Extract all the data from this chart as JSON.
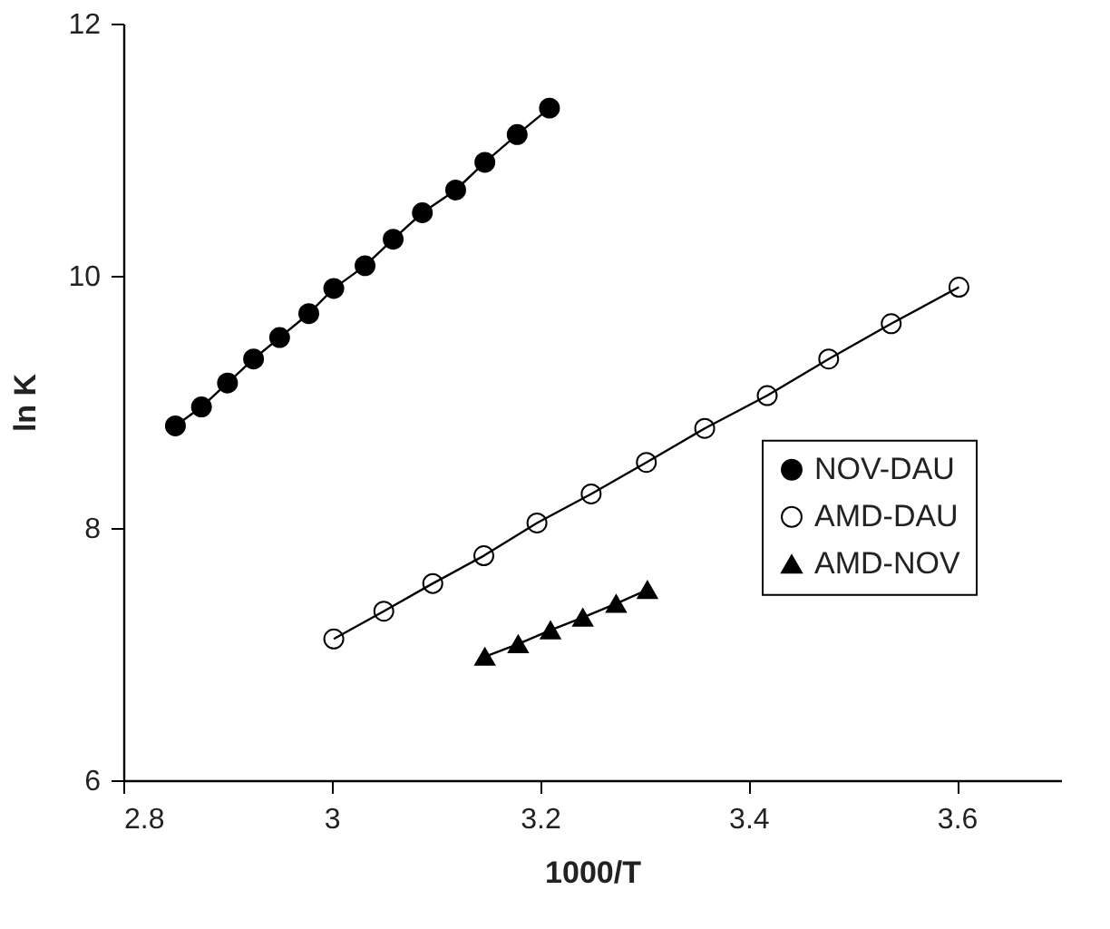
{
  "chart_data": {
    "type": "line",
    "xlabel": "1000/T",
    "ylabel": "ln K",
    "xlim": [
      2.8,
      3.7
    ],
    "xticks": [
      2.8,
      3,
      3.2,
      3.4,
      3.6
    ],
    "ylim": [
      6,
      12
    ],
    "yticks": [
      6,
      8,
      10,
      12
    ],
    "grid": false,
    "legend": "right",
    "line_style": "solid",
    "series": [
      {
        "name": "NOV-DAU",
        "color": "#000000",
        "marker": "circle",
        "x": [
          2.85,
          2.875,
          2.9,
          2.925,
          2.95,
          2.978,
          3.002,
          3.032,
          3.059,
          3.087,
          3.119,
          3.147,
          3.178,
          3.209
        ],
        "values": [
          8.81,
          8.96,
          9.15,
          9.34,
          9.51,
          9.7,
          9.9,
          10.08,
          10.29,
          10.5,
          10.68,
          10.9,
          11.12,
          11.33
        ]
      },
      {
        "name": "AMD-DAU",
        "color": "#ffffff",
        "marker": "circle",
        "x": [
          3.002,
          3.05,
          3.097,
          3.146,
          3.197,
          3.249,
          3.302,
          3.358,
          3.418,
          3.477,
          3.537,
          3.602
        ],
        "values": [
          7.12,
          7.34,
          7.56,
          7.78,
          8.04,
          8.27,
          8.52,
          8.79,
          9.05,
          9.34,
          9.62,
          9.91
        ]
      },
      {
        "name": "AMD-NOV",
        "color": "#000000",
        "marker": "triangle",
        "x": [
          3.147,
          3.179,
          3.21,
          3.241,
          3.273,
          3.303
        ],
        "values": [
          6.98,
          7.08,
          7.19,
          7.29,
          7.4,
          7.51
        ]
      }
    ]
  }
}
